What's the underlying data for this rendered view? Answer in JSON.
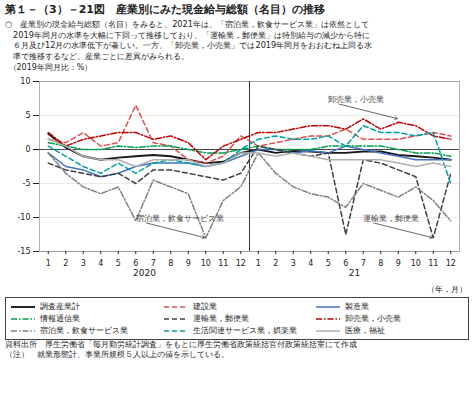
{
  "chart_data": {
    "type": "line",
    "title": "第１－（3）－21図　産業別にみた現金給与総額（名目）の推移",
    "subtitle": [
      "○　産業別の現金給与総額（名目）をみると、2021年は、「宿泊業，飲食サービス業」は依然として",
      "　2019年同月の水準を大幅に下回って推移しており、「運輸業，郵便業」は特別給与の減少から特に",
      "　６月及び12月の水準低下が著しい。一方、「卸売業，小売業」では2019年同月をおおむね上回る水",
      "　準で推移するなど、産業ごとに差異がみられる。"
    ],
    "ylabel": "（2019年同月比：%）",
    "xlabel": "（年，月）",
    "categories": [
      "1",
      "2",
      "3",
      "4",
      "5",
      "6",
      "7",
      "8",
      "9",
      "10",
      "11",
      "12",
      "1",
      "2",
      "3",
      "4",
      "5",
      "6",
      "7",
      "8",
      "9",
      "10",
      "11",
      "12"
    ],
    "year_labels": [
      "2020",
      "21"
    ],
    "ylim": [
      -15,
      10
    ],
    "yticks": [
      -15,
      -10,
      -5,
      0,
      5,
      10
    ],
    "grid": true,
    "legend": "bottom",
    "series": [
      {
        "name": "調査産業計",
        "color": "#1a1a1a",
        "line_style": "solid",
        "values": [
          2.3,
          0.3,
          -1.0,
          -1.5,
          -1.2,
          -1.0,
          -0.8,
          -1.0,
          -1.5,
          -2.0,
          -1.8,
          -0.5,
          0.0,
          -0.5,
          -0.2,
          -0.3,
          -0.5,
          -0.5,
          -0.3,
          -0.3,
          -0.8,
          -1.0,
          -1.2,
          -1.5
        ]
      },
      {
        "name": "建設業",
        "color": "#e05050",
        "line_style": "dashed",
        "values": [
          1.5,
          1.0,
          2.5,
          0.5,
          1.0,
          6.5,
          1.0,
          0.5,
          -1.5,
          -2.0,
          -1.0,
          2.0,
          0.5,
          1.0,
          1.5,
          2.0,
          2.0,
          3.0,
          1.5,
          1.5,
          1.5,
          2.0,
          2.5,
          2.0
        ]
      },
      {
        "name": "製造業",
        "color": "#4472c4",
        "line_style": "solid",
        "values": [
          -0.5,
          -2.5,
          -3.0,
          -4.0,
          -3.5,
          -2.5,
          -2.0,
          -2.0,
          -2.0,
          -2.5,
          -2.0,
          -1.0,
          0.0,
          0.0,
          -0.5,
          -0.2,
          -0.5,
          0.5,
          0.0,
          -0.5,
          -1.0,
          -1.5,
          -1.5,
          -1.5
        ]
      },
      {
        "name": "情報通信業",
        "color": "#00a050",
        "line_style": "dashdot",
        "values": [
          1.0,
          0.5,
          0.0,
          0.0,
          0.5,
          0.3,
          0.5,
          0.5,
          0.0,
          -0.5,
          -0.5,
          0.0,
          0.5,
          0.0,
          0.0,
          0.0,
          0.5,
          0.5,
          0.5,
          0.5,
          0.0,
          -0.5,
          -0.5,
          -1.0
        ]
      },
      {
        "name": "運輸業，郵便業",
        "color": "#404040",
        "line_style": "dashed",
        "values": [
          -2.0,
          -3.0,
          -3.5,
          -4.0,
          -3.5,
          -5.0,
          -3.0,
          -3.0,
          -3.5,
          -4.0,
          -4.5,
          -3.5,
          0.5,
          0.0,
          -0.5,
          -1.0,
          -0.5,
          -12.5,
          -1.5,
          -2.0,
          -3.0,
          -4.0,
          -13.0,
          -3.5
        ]
      },
      {
        "name": "卸売業，小売業",
        "color": "#c00000",
        "line_style": "dashdot",
        "values": [
          2.5,
          0.5,
          1.5,
          2.0,
          2.5,
          2.5,
          1.5,
          2.0,
          1.0,
          -1.5,
          0.5,
          1.5,
          2.5,
          2.5,
          3.0,
          3.5,
          3.5,
          3.0,
          4.5,
          3.0,
          4.0,
          3.5,
          2.0,
          1.5
        ]
      },
      {
        "name": "宿泊業，飲食サービス業",
        "color": "#808080",
        "line_style": "dashdot",
        "values": [
          -0.5,
          -3.5,
          -5.5,
          -6.5,
          -5.5,
          -10.5,
          -4.5,
          -5.5,
          -6.5,
          -13.0,
          -7.5,
          -5.5,
          -0.5,
          -3.5,
          -5.5,
          -6.5,
          -7.0,
          -8.5,
          -5.0,
          -6.0,
          -7.0,
          -5.5,
          -7.5,
          -10.5
        ]
      },
      {
        "name": "生活関連サービス業，娯楽業",
        "color": "#00a0a0",
        "line_style": "dashed",
        "values": [
          0.5,
          -1.0,
          -2.5,
          -3.5,
          -2.0,
          -3.5,
          -2.0,
          -1.5,
          -2.0,
          -2.5,
          -2.0,
          0.0,
          1.5,
          2.0,
          1.5,
          1.5,
          2.0,
          0.5,
          3.5,
          2.5,
          2.5,
          2.0,
          2.5,
          -5.0
        ]
      },
      {
        "name": "医療，福祉",
        "color": "#b0b0b0",
        "line_style": "solid",
        "values": [
          1.5,
          0.5,
          -1.0,
          -1.5,
          -1.5,
          -2.5,
          -1.5,
          -1.5,
          -1.5,
          -2.5,
          -2.0,
          -0.5,
          -0.5,
          -1.0,
          -0.5,
          -1.0,
          -1.5,
          -1.5,
          -1.5,
          -1.5,
          -2.0,
          -2.5,
          -2.0,
          -2.5
        ]
      }
    ],
    "annotations": [
      {
        "text": "宿泊業，飲食サービス業",
        "x": 9,
        "y": -13.0
      },
      {
        "text": "運輸業，郵便業",
        "x": 22,
        "y": -13.0
      },
      {
        "text": "卸売業，小売業",
        "x": 20,
        "y": 4.5
      }
    ],
    "source": "資料出所　厚生労働省「毎月勤労統計調査」をもとに厚生労働省政策統括官付政策統括室にて作成",
    "note": "（注）　就業形態計、事業所規模５人以上の値を示している。"
  }
}
